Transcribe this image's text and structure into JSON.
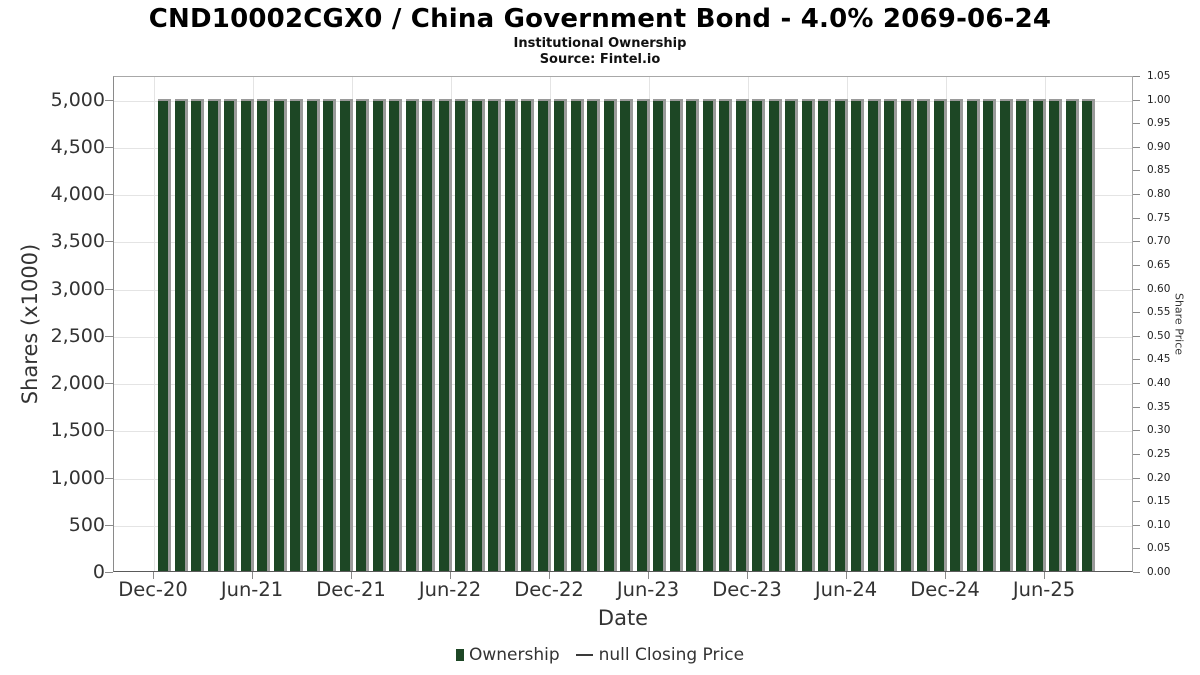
{
  "header": {
    "title": "CND10002CGX0 / China Government Bond - 4.0% 2069-06-24",
    "subtitle": "Institutional Ownership",
    "source": "Source: Fintel.io"
  },
  "chart_data": {
    "type": "bar",
    "title": "CND10002CGX0 / China Government Bond - 4.0% 2069-06-24",
    "subtitle": "Institutional Ownership",
    "source": "Source: Fintel.io",
    "xlabel": "Date",
    "ylabel": "Shares (x1000)",
    "y2label": "Share Price",
    "grid": true,
    "legend_position": "bottom",
    "ylim": [
      0,
      5250
    ],
    "y2lim": [
      0,
      1.05
    ],
    "categories": [
      "Dec-2020",
      "Jan-2021",
      "Feb-2021",
      "Mar-2021",
      "Apr-2021",
      "May-2021",
      "Jun-2021",
      "Jul-2021",
      "Aug-2021",
      "Sep-2021",
      "Oct-2021",
      "Nov-2021",
      "Dec-2021",
      "Jan-2022",
      "Feb-2022",
      "Mar-2022",
      "Apr-2022",
      "May-2022",
      "Jun-2022",
      "Jul-2022",
      "Aug-2022",
      "Sep-2022",
      "Oct-2022",
      "Nov-2022",
      "Dec-2022",
      "Jan-2023",
      "Feb-2023",
      "Mar-2023",
      "Apr-2023",
      "May-2023",
      "Jun-2023",
      "Jul-2023",
      "Aug-2023",
      "Sep-2023",
      "Oct-2023",
      "Nov-2023",
      "Dec-2023",
      "Jan-2024",
      "Feb-2024",
      "Mar-2024",
      "Apr-2024",
      "May-2024",
      "Jun-2024",
      "Jul-2024",
      "Aug-2024",
      "Sep-2024",
      "Oct-2024",
      "Nov-2024",
      "Dec-2024",
      "Jan-2025",
      "Feb-2025",
      "Mar-2025",
      "Apr-2025",
      "May-2025",
      "Jun-2025",
      "Jul-2025",
      "Aug-2025"
    ],
    "series": [
      {
        "name": "Ownership",
        "type": "bar",
        "values": [
          5000,
          5000,
          5000,
          5000,
          5000,
          5000,
          5000,
          5000,
          5000,
          5000,
          5000,
          5000,
          5000,
          5000,
          5000,
          5000,
          5000,
          5000,
          5000,
          5000,
          5000,
          5000,
          5000,
          5000,
          5000,
          5000,
          5000,
          5000,
          5000,
          5000,
          5000,
          5000,
          5000,
          5000,
          5000,
          5000,
          5000,
          5000,
          5000,
          5000,
          5000,
          5000,
          5000,
          5000,
          5000,
          5000,
          5000,
          5000,
          5000,
          5000,
          5000,
          5000,
          5000,
          5000,
          5000,
          5000,
          5000
        ]
      },
      {
        "name": "null Closing Price",
        "type": "line",
        "values": []
      }
    ],
    "y_tick_values": [
      0,
      500,
      1000,
      1500,
      2000,
      2500,
      3000,
      3500,
      4000,
      4500,
      5000
    ],
    "y_tick_labels": [
      "0",
      "500",
      "1,000",
      "1,500",
      "2,000",
      "2,500",
      "3,000",
      "3,500",
      "4,000",
      "4,500",
      "5,000"
    ],
    "y2_tick_values": [
      0,
      0.05,
      0.1,
      0.15,
      0.2,
      0.25,
      0.3,
      0.35,
      0.4,
      0.45,
      0.5,
      0.55,
      0.6,
      0.65,
      0.7,
      0.75,
      0.8,
      0.85,
      0.9,
      0.95,
      1.0,
      1.05
    ],
    "y2_tick_labels": [
      "0.00",
      "0.05",
      "0.10",
      "0.15",
      "0.20",
      "0.25",
      "0.30",
      "0.35",
      "0.40",
      "0.45",
      "0.50",
      "0.55",
      "0.60",
      "0.65",
      "0.70",
      "0.75",
      "0.80",
      "0.85",
      "0.90",
      "0.95",
      "1.00",
      "1.05"
    ],
    "x_tick_labels": [
      "Dec-20",
      "Jun-21",
      "Dec-21",
      "Jun-22",
      "Dec-22",
      "Jun-23",
      "Dec-23",
      "Jun-24",
      "Dec-24",
      "Jun-25"
    ],
    "x_tick_category_step": 6,
    "colors": {
      "bar": "#1d4725",
      "bar_edge": "#9a9a9a",
      "grid": "#e4e4e4",
      "axis_text": "#333333",
      "title_text": "#000000"
    }
  },
  "legend": {
    "items": [
      {
        "label": "Ownership",
        "marker": "square"
      },
      {
        "label": "null Closing Price",
        "marker": "line"
      }
    ]
  }
}
